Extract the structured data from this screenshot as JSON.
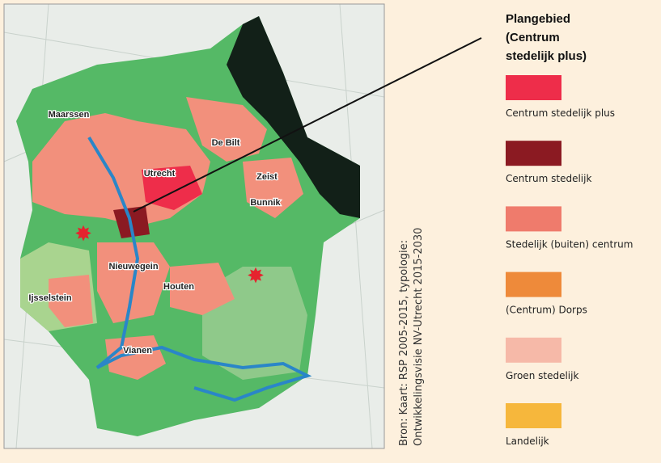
{
  "map": {
    "places": [
      "Maarssen",
      "De Bilt",
      "Utrecht",
      "Zeist",
      "Bunnik",
      "Nieuwegein",
      "Houten",
      "Ijsselstein",
      "Vianen"
    ],
    "source": [
      "Bron: Kaart: RSP 2005-2015, typologie:",
      "Ontwikkelingsvisie NV-Utrecht 2015-2030"
    ]
  },
  "legend": {
    "title": [
      "Plangebied",
      "(Centrum",
      "stedelijk plus)"
    ],
    "items": [
      {
        "label": "Centrum stedelijk plus",
        "color": "#ee2d4a"
      },
      {
        "label": "Centrum stedelijk",
        "color": "#8b1a22"
      },
      {
        "label": "Stedelijk (buiten) centrum",
        "color": "#ef7b6c"
      },
      {
        "label": "(Centrum) Dorps",
        "color": "#ee8a3a"
      },
      {
        "label": "Groen stedelijk",
        "color": "#f6b9a8"
      },
      {
        "label": "Landelijk",
        "color": "#f6b73c"
      }
    ]
  }
}
